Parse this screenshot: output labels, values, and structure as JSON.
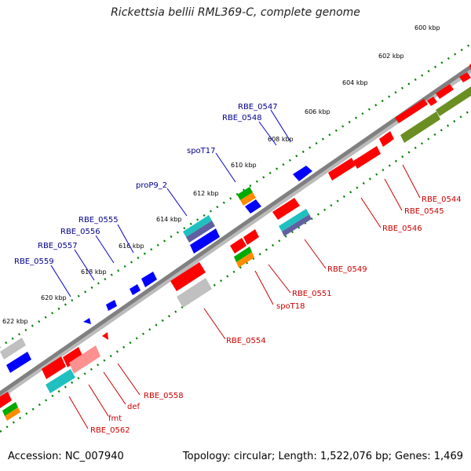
{
  "title": "Rickettsia bellii RML369-C, complete genome",
  "footer": {
    "accession": "Accession: NC_007940",
    "summary": "Topology: circular; Length: 1,522,076 bp; Genes: 1,469"
  },
  "colors": {
    "backbone": "#808080",
    "forward_gene": "#ff0000",
    "reverse_gene": "#0000ff",
    "rna_gene": "#00aa00",
    "other_gene": "#c0c0c0",
    "tick_dot": "#008000",
    "label_top": "#00008b",
    "label_bottom": "#cc0000"
  },
  "ticks": [
    "600 kbp",
    "602 kbp",
    "604 kbp",
    "606 kbp",
    "608 kbp",
    "610 kbp",
    "612 kbp",
    "614 kbp",
    "616 kbp",
    "618 kbp",
    "620 kbp",
    "622 kbp"
  ],
  "labels_top": [
    "RBE_0547",
    "RBE_0548",
    "spoT17",
    "proP9_2",
    "RBE_0555",
    "RBE_0556",
    "RBE_0557",
    "RBE_0559"
  ],
  "labels_bottom": [
    "RBE_0544",
    "RBE_0545",
    "RBE_0546",
    "RBE_0549",
    "RBE_0551",
    "spoT18",
    "RBE_0554",
    "RBE_0558",
    "def",
    "fmt",
    "RBE_0562"
  ]
}
